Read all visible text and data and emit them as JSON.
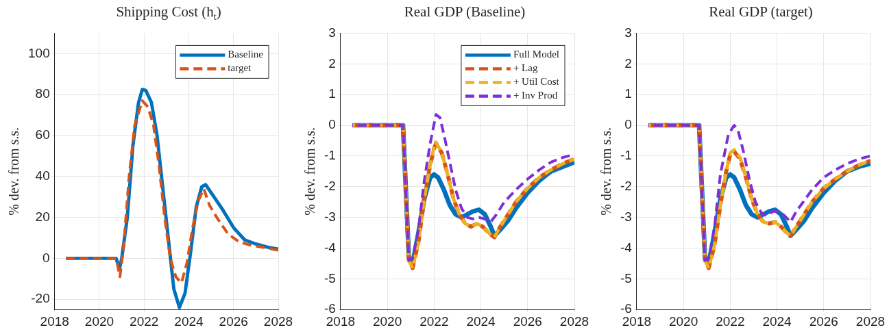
{
  "chart_data": [
    {
      "type": "line",
      "title": "Shipping Cost (h$_{t}$)",
      "ylabel": "% dev. from s.s.",
      "xlim": [
        2018,
        2028
      ],
      "xticks": [
        2018,
        2020,
        2022,
        2024,
        2026,
        2028
      ],
      "ylim": [
        -25,
        110
      ],
      "yticks": [
        -20,
        0,
        20,
        40,
        60,
        80,
        100
      ],
      "grid": true,
      "legend": "top right",
      "series": [
        {
          "name": "Baseline",
          "color": "#0072bd",
          "line_style": "solid",
          "x": [
            2018.5,
            2020.75,
            2020.9,
            2021.0,
            2021.25,
            2021.5,
            2021.75,
            2021.92,
            2022.08,
            2022.33,
            2022.58,
            2022.83,
            2023.08,
            2023.33,
            2023.58,
            2023.83,
            2024.08,
            2024.33,
            2024.58,
            2024.75,
            2025.0,
            2025.5,
            2026.0,
            2026.5,
            2027.0,
            2027.5,
            2028.0
          ],
          "values": [
            0,
            0,
            -5,
            0,
            20,
            55,
            76,
            82.5,
            82,
            76,
            60,
            35,
            10,
            -15,
            -24,
            -17,
            3,
            25,
            35,
            36,
            32,
            24,
            15,
            9,
            7,
            5.5,
            4.5
          ]
        },
        {
          "name": "target",
          "color": "#d95319",
          "line_style": "dashed",
          "x": [
            2018.5,
            2020.75,
            2020.92,
            2021.08,
            2021.33,
            2021.58,
            2021.92,
            2022.17,
            2022.42,
            2022.67,
            2022.92,
            2023.17,
            2023.42,
            2023.67,
            2023.92,
            2024.17,
            2024.42,
            2024.67,
            2024.92,
            2025.25,
            2025.75,
            2026.25,
            2026.75,
            2027.5,
            2028.0
          ],
          "values": [
            0,
            0,
            -9,
            5,
            40,
            65,
            77,
            74,
            65,
            45,
            20,
            0,
            -9,
            -12,
            -2,
            15,
            28,
            34,
            26,
            20,
            12,
            8,
            6.5,
            5,
            4
          ]
        }
      ]
    },
    {
      "type": "line",
      "title": "Real GDP (Baseline)",
      "ylabel": "% dev. from s.s.",
      "xlim": [
        2018,
        2028
      ],
      "xticks": [
        2018,
        2020,
        2022,
        2024,
        2026,
        2028
      ],
      "ylim": [
        -6,
        3
      ],
      "yticks": [
        -6,
        -5,
        -4,
        -3,
        -2,
        -1,
        0,
        1,
        2,
        3
      ],
      "grid": true,
      "legend": "top right",
      "series": [
        {
          "name": "Full Model",
          "color": "#0072bd",
          "line_style": "solid",
          "x": [
            2018.5,
            2020.67,
            2020.92,
            2021.08,
            2021.33,
            2021.58,
            2021.83,
            2022.0,
            2022.17,
            2022.42,
            2022.67,
            2022.92,
            2023.17,
            2023.42,
            2023.67,
            2023.92,
            2024.17,
            2024.42,
            2024.58,
            2024.83,
            2025.17,
            2025.5,
            2026.0,
            2026.5,
            2027.0,
            2027.5,
            2028.0
          ],
          "values": [
            0,
            0,
            -4.3,
            -4.5,
            -3.5,
            -2.4,
            -1.7,
            -1.6,
            -1.7,
            -2.1,
            -2.6,
            -2.9,
            -3.0,
            -2.9,
            -2.8,
            -2.75,
            -2.9,
            -3.3,
            -3.6,
            -3.4,
            -3.1,
            -2.7,
            -2.2,
            -1.8,
            -1.5,
            -1.35,
            -1.2
          ]
        },
        {
          "name": "+ Lag",
          "color": "#d95319",
          "line_style": "dashed",
          "x": [
            2018.5,
            2020.67,
            2020.92,
            2021.08,
            2021.33,
            2021.58,
            2021.83,
            2022.0,
            2022.08,
            2022.33,
            2022.58,
            2022.83,
            2023.08,
            2023.33,
            2023.58,
            2023.83,
            2024.08,
            2024.33,
            2024.58,
            2024.83,
            2025.17,
            2025.5,
            2026.0,
            2026.5,
            2027.0,
            2027.5,
            2028.0
          ],
          "values": [
            0,
            0,
            -4.4,
            -4.65,
            -3.8,
            -2.4,
            -1.3,
            -0.75,
            -0.6,
            -0.9,
            -1.6,
            -2.4,
            -2.9,
            -3.2,
            -3.3,
            -3.2,
            -3.3,
            -3.5,
            -3.65,
            -3.3,
            -2.9,
            -2.5,
            -2.05,
            -1.7,
            -1.45,
            -1.25,
            -1.1
          ]
        },
        {
          "name": "+ Util Cost",
          "color": "#edb120",
          "line_style": "dashed",
          "x": [
            2018.5,
            2020.67,
            2020.92,
            2021.08,
            2021.33,
            2021.58,
            2021.83,
            2022.0,
            2022.08,
            2022.33,
            2022.58,
            2022.83,
            2023.08,
            2023.33,
            2023.58,
            2023.83,
            2024.08,
            2024.33,
            2024.58,
            2024.83,
            2025.17,
            2025.5,
            2026.0,
            2026.5,
            2027.0,
            2027.5,
            2028.0
          ],
          "values": [
            0,
            0,
            -4.4,
            -4.65,
            -3.8,
            -2.4,
            -1.3,
            -0.7,
            -0.55,
            -0.9,
            -1.6,
            -2.4,
            -2.9,
            -3.2,
            -3.3,
            -3.2,
            -3.3,
            -3.5,
            -3.65,
            -3.3,
            -2.9,
            -2.5,
            -2.05,
            -1.7,
            -1.45,
            -1.25,
            -1.1
          ]
        },
        {
          "name": "+ Inv Prod",
          "color": "#7e2fd8",
          "line_style": "dashed",
          "x": [
            2018.5,
            2020.67,
            2020.92,
            2021.08,
            2021.33,
            2021.58,
            2021.83,
            2022.08,
            2022.25,
            2022.42,
            2022.67,
            2022.92,
            2023.17,
            2023.42,
            2023.67,
            2023.92,
            2024.17,
            2024.42,
            2024.67,
            2025.0,
            2025.5,
            2026.0,
            2026.5,
            2027.0,
            2027.5,
            2028.0
          ],
          "values": [
            0,
            0,
            -4.4,
            -4.35,
            -3.4,
            -1.8,
            -0.6,
            0.35,
            0.25,
            -0.3,
            -1.2,
            -2.1,
            -2.7,
            -3.0,
            -3.05,
            -3.0,
            -3.05,
            -3.15,
            -2.9,
            -2.5,
            -2.1,
            -1.75,
            -1.45,
            -1.2,
            -1.05,
            -0.95
          ]
        }
      ]
    },
    {
      "type": "line",
      "title": "Real GDP (target)",
      "ylabel": "% dev. from s.s.",
      "xlim": [
        2018,
        2028
      ],
      "xticks": [
        2018,
        2020,
        2022,
        2024,
        2026,
        2028
      ],
      "ylim": [
        -6,
        3
      ],
      "yticks": [
        -6,
        -5,
        -4,
        -3,
        -2,
        -1,
        0,
        1,
        2,
        3
      ],
      "grid": true,
      "series": [
        {
          "color": "#0072bd",
          "line_style": "solid",
          "x": [
            2018.5,
            2020.67,
            2020.92,
            2021.08,
            2021.33,
            2021.58,
            2021.83,
            2022.0,
            2022.17,
            2022.42,
            2022.67,
            2022.92,
            2023.17,
            2023.42,
            2023.67,
            2023.92,
            2024.17,
            2024.42,
            2024.58,
            2024.83,
            2025.17,
            2025.5,
            2026.0,
            2026.5,
            2027.0,
            2027.5,
            2028.0
          ],
          "values": [
            0,
            0,
            -4.3,
            -4.5,
            -3.5,
            -2.4,
            -1.7,
            -1.6,
            -1.7,
            -2.1,
            -2.6,
            -2.9,
            -3.0,
            -2.9,
            -2.8,
            -2.75,
            -2.9,
            -3.3,
            -3.6,
            -3.4,
            -3.1,
            -2.7,
            -2.2,
            -1.8,
            -1.5,
            -1.35,
            -1.25
          ]
        },
        {
          "color": "#d95319",
          "line_style": "dashed",
          "x": [
            2018.5,
            2020.67,
            2020.92,
            2021.08,
            2021.33,
            2021.58,
            2021.83,
            2022.0,
            2022.17,
            2022.42,
            2022.67,
            2022.92,
            2023.17,
            2023.42,
            2023.67,
            2023.92,
            2024.17,
            2024.42,
            2024.58,
            2024.83,
            2025.17,
            2025.5,
            2026.0,
            2026.5,
            2027.0,
            2027.5,
            2028.0
          ],
          "values": [
            0,
            0,
            -4.4,
            -4.65,
            -3.9,
            -2.6,
            -1.5,
            -0.95,
            -0.85,
            -1.1,
            -1.7,
            -2.4,
            -2.9,
            -3.15,
            -3.2,
            -3.15,
            -3.3,
            -3.5,
            -3.6,
            -3.3,
            -2.9,
            -2.5,
            -2.05,
            -1.75,
            -1.5,
            -1.3,
            -1.15
          ]
        },
        {
          "color": "#edb120",
          "line_style": "dashed",
          "x": [
            2018.5,
            2020.67,
            2020.92,
            2021.08,
            2021.33,
            2021.58,
            2021.83,
            2022.0,
            2022.17,
            2022.42,
            2022.67,
            2022.92,
            2023.17,
            2023.42,
            2023.67,
            2023.92,
            2024.17,
            2024.42,
            2024.58,
            2024.83,
            2025.17,
            2025.5,
            2026.0,
            2026.5,
            2027.0,
            2027.5,
            2028.0
          ],
          "values": [
            0,
            0,
            -4.4,
            -4.65,
            -3.9,
            -2.6,
            -1.5,
            -0.9,
            -0.8,
            -1.05,
            -1.7,
            -2.4,
            -2.9,
            -3.15,
            -3.2,
            -3.15,
            -3.3,
            -3.5,
            -3.6,
            -3.3,
            -2.9,
            -2.5,
            -2.05,
            -1.75,
            -1.5,
            -1.3,
            -1.15
          ]
        },
        {
          "color": "#7e2fd8",
          "line_style": "dashed",
          "x": [
            2018.5,
            2020.67,
            2020.92,
            2021.08,
            2021.33,
            2021.58,
            2021.92,
            2022.17,
            2022.33,
            2022.58,
            2022.83,
            2023.08,
            2023.33,
            2023.58,
            2023.83,
            2024.08,
            2024.33,
            2024.58,
            2024.83,
            2025.17,
            2025.5,
            2026.0,
            2026.5,
            2027.0,
            2027.5,
            2028.0
          ],
          "values": [
            0,
            0,
            -4.4,
            -4.35,
            -3.3,
            -1.6,
            -0.3,
            0.0,
            -0.15,
            -0.9,
            -1.8,
            -2.5,
            -2.85,
            -2.95,
            -2.8,
            -2.8,
            -2.95,
            -3.15,
            -2.8,
            -2.45,
            -2.1,
            -1.7,
            -1.45,
            -1.25,
            -1.1,
            -1.0
          ]
        }
      ]
    }
  ]
}
